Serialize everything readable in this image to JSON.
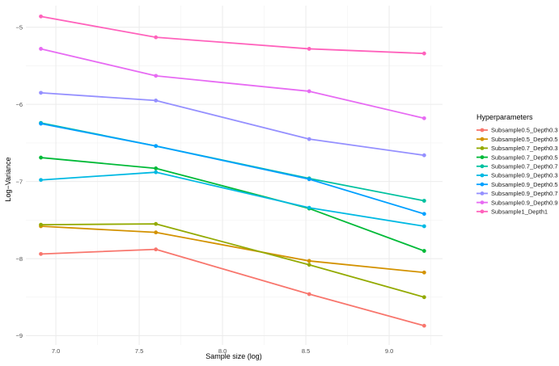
{
  "chart_data": {
    "type": "line",
    "xlabel": "Sample size (log)",
    "ylabel": "Log−Variance",
    "xlim": [
      6.82,
      9.32
    ],
    "ylim": [
      -9.12,
      -4.72
    ],
    "x_ticks": [
      7.0,
      7.5,
      8.0,
      8.5,
      9.0
    ],
    "x_tick_labels": [
      "7.0",
      "7.5",
      "8.0",
      "8.5",
      "9.0"
    ],
    "y_ticks": [
      -5,
      -6,
      -7,
      -8,
      -9
    ],
    "y_tick_labels": [
      "−5",
      "−6",
      "−7",
      "−8",
      "−9"
    ],
    "grid": true,
    "legend": {
      "title": "Hyperparameters",
      "position": "right"
    },
    "x": [
      6.91,
      7.6,
      8.52,
      9.21
    ],
    "series": [
      {
        "name": "Subsample0.5_Depth0.3",
        "color": "#F8766D",
        "values": [
          -7.94,
          -7.88,
          -8.46,
          -8.87
        ]
      },
      {
        "name": "Subsample0.5_Depth0.5",
        "color": "#D39200",
        "values": [
          -7.58,
          -7.66,
          -8.03,
          -8.18
        ]
      },
      {
        "name": "Subsample0.7_Depth0.3",
        "color": "#93AA00",
        "values": [
          -7.56,
          -7.55,
          -8.08,
          -8.5
        ]
      },
      {
        "name": "Subsample0.7_Depth0.5",
        "color": "#00BA38",
        "values": [
          -6.69,
          -6.83,
          -7.35,
          -7.9
        ]
      },
      {
        "name": "Subsample0.7_Depth0.7",
        "color": "#00C19F",
        "values": [
          -6.24,
          -6.54,
          -6.96,
          -7.25
        ]
      },
      {
        "name": "Subsample0.9_Depth0.3",
        "color": "#00B9E3",
        "values": [
          -6.98,
          -6.88,
          -7.34,
          -7.58
        ]
      },
      {
        "name": "Subsample0.9_Depth0.5",
        "color": "#00A0FF",
        "values": [
          -6.25,
          -6.54,
          -6.97,
          -7.42
        ]
      },
      {
        "name": "Subsample0.9_Depth0.7",
        "color": "#9590FF",
        "values": [
          -5.85,
          -5.95,
          -6.45,
          -6.66
        ]
      },
      {
        "name": "Subsample0.9_Depth0.9",
        "color": "#E76BF3",
        "values": [
          -5.28,
          -5.63,
          -5.83,
          -6.18
        ]
      },
      {
        "name": "Subsample1_Depth1",
        "color": "#FF62BC",
        "values": [
          -4.86,
          -5.13,
          -5.28,
          -5.34
        ]
      }
    ]
  }
}
